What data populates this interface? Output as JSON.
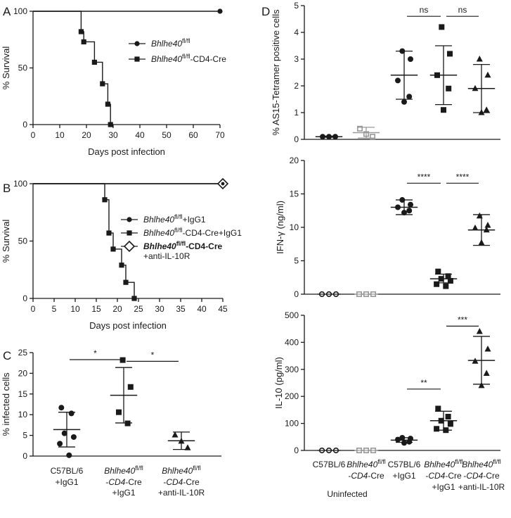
{
  "panels": {
    "A": "A",
    "B": "B",
    "C": "C",
    "D": "D"
  },
  "chart_data": [
    {
      "panel": "A",
      "type": "line",
      "xlabel": "Days post infection",
      "ylabel": "% Survival",
      "xlim": [
        0,
        70
      ],
      "ylim": [
        0,
        100
      ],
      "xticks": [
        0,
        10,
        20,
        30,
        40,
        50,
        60,
        70
      ],
      "yticks": [
        0,
        50,
        100
      ],
      "series": [
        {
          "name": "Bhlhe40",
          "sup": "fl/fl",
          "suffix": "",
          "marker": "circle",
          "x": [
            0,
            70
          ],
          "y": [
            100,
            100
          ],
          "marked": [
            [
              70,
              100
            ]
          ]
        },
        {
          "name": "Bhlhe40",
          "sup": "fl/fl",
          "suffix": "-CD4-Cre",
          "marker": "square",
          "x": [
            0,
            18,
            19,
            23,
            26,
            28,
            29
          ],
          "y": [
            100,
            82,
            73,
            55,
            36,
            18,
            0
          ],
          "marked": [
            [
              18,
              82
            ],
            [
              19,
              73
            ],
            [
              23,
              55
            ],
            [
              26,
              36
            ],
            [
              28,
              18
            ],
            [
              29,
              0
            ]
          ]
        }
      ]
    },
    {
      "panel": "B",
      "type": "line",
      "xlabel": "Days post infection",
      "ylabel": "% Survival",
      "xlim": [
        0,
        45
      ],
      "ylim": [
        0,
        100
      ],
      "xticks": [
        0,
        5,
        10,
        15,
        20,
        25,
        30,
        35,
        40,
        45
      ],
      "yticks": [
        0,
        50,
        100
      ],
      "series": [
        {
          "name": "Bhlhe40",
          "sup": "fl/fl",
          "suffix": "+IgG1",
          "marker": "circle",
          "x": [
            0,
            45
          ],
          "y": [
            100,
            100
          ],
          "marked": [
            [
              45,
              100
            ]
          ]
        },
        {
          "name": "Bhlhe40",
          "sup": "fl/fl",
          "suffix": "-CD4-Cre+IgG1",
          "marker": "square",
          "x": [
            0,
            17,
            18,
            19,
            21,
            22,
            24
          ],
          "y": [
            100,
            86,
            57,
            43,
            29,
            14,
            0
          ],
          "marked": [
            [
              17,
              86
            ],
            [
              18,
              57
            ],
            [
              19,
              43
            ],
            [
              21,
              29
            ],
            [
              22,
              14
            ],
            [
              24,
              0
            ]
          ]
        },
        {
          "name": "Bhlhe40",
          "sup": "fl/fl",
          "suffix": "-CD4-Cre",
          "line2": "+anti-IL-10R",
          "marker": "diamond",
          "x": [
            0,
            45
          ],
          "y": [
            100,
            100
          ],
          "marked": [
            [
              45,
              100
            ]
          ]
        }
      ]
    },
    {
      "panel": "C",
      "type": "scatter",
      "ylabel": "% infected cells",
      "ylim": [
        0,
        25
      ],
      "yticks": [
        0,
        5,
        10,
        15,
        20,
        25
      ],
      "groups": [
        {
          "line1": "C57BL/6",
          "line2": "+IgG1",
          "marker": "circle",
          "points": [
            11.7,
            10.3,
            5.5,
            4.6,
            3.0,
            0.2
          ],
          "mean": 6.4,
          "sd": [
            2.2,
            10.6
          ]
        },
        {
          "line1": "Bhlhe40",
          "sup": "fl/fl",
          "line2": "-CD4-Cre",
          "line3": "+IgG1",
          "marker": "square",
          "points": [
            23.2,
            16.7,
            10.6,
            7.9
          ],
          "mean": 14.7,
          "sd": [
            8.0,
            21.4
          ]
        },
        {
          "line1": "Bhlhe40",
          "sup": "fl/fl",
          "line2": "-CD4-Cre",
          "line3": "+anti-IL-10R",
          "marker": "triangle",
          "points": [
            5.1,
            3.6,
            2.0
          ],
          "mean": 3.7,
          "sd": [
            1.6,
            5.8
          ]
        }
      ],
      "significance": [
        {
          "from": 0,
          "to": 1,
          "label": "*",
          "y": 23.3
        },
        {
          "from": 1,
          "to": 2,
          "label": "*",
          "y": 22.9
        }
      ]
    },
    {
      "panel": "D",
      "type": "scatter",
      "subplots": [
        {
          "ylabel": "% AS15-Tetramer positive cells",
          "ylim": [
            0,
            5
          ],
          "yticks": [
            0,
            1,
            2,
            3,
            4,
            5
          ],
          "groups": [
            {
              "marker": "circle",
              "color": "#1a1a1a",
              "points": [
                0.1,
                0.1,
                0.1
              ],
              "mean": 0.1,
              "sd": [
                0.08,
                0.12
              ]
            },
            {
              "marker": "open-square",
              "color": "#999999",
              "points": [
                0.4,
                0.2,
                0.1
              ],
              "mean": 0.25,
              "sd": [
                0.05,
                0.45
              ]
            },
            {
              "marker": "circle",
              "color": "#1a1a1a",
              "points": [
                3.3,
                3.0,
                2.2,
                1.6,
                1.4
              ],
              "mean": 2.4,
              "sd": [
                1.5,
                3.3
              ]
            },
            {
              "marker": "square",
              "color": "#1a1a1a",
              "points": [
                4.2,
                3.2,
                2.4,
                1.9,
                1.1
              ],
              "mean": 2.4,
              "sd": [
                1.3,
                3.5
              ]
            },
            {
              "marker": "triangle",
              "color": "#1a1a1a",
              "points": [
                3.0,
                2.4,
                1.9,
                1.1,
                1.0
              ],
              "mean": 1.9,
              "sd": [
                1.0,
                2.8
              ]
            }
          ],
          "significance": [
            {
              "from": 2,
              "to": 3,
              "label": "ns",
              "y": 4.6
            },
            {
              "from": 3,
              "to": 4,
              "label": "ns",
              "y": 4.6
            }
          ]
        },
        {
          "ylabel": "IFN-γ (ng/ml)",
          "ylim": [
            0,
            20
          ],
          "yticks": [
            0,
            5,
            10,
            15,
            20
          ],
          "groups": [
            {
              "marker": "open-circle",
              "color": "#1a1a1a",
              "points": [
                0,
                0,
                0
              ],
              "mean": 0,
              "sd": [
                0,
                0
              ]
            },
            {
              "marker": "open-square",
              "color": "#999999",
              "points": [
                0,
                0,
                0
              ],
              "mean": 0,
              "sd": [
                0,
                0
              ]
            },
            {
              "marker": "circle",
              "color": "#1a1a1a",
              "points": [
                14.1,
                13.4,
                13.0,
                12.5,
                12.2
              ],
              "mean": 13.0,
              "sd": [
                11.9,
                14.1
              ]
            },
            {
              "marker": "square",
              "color": "#1a1a1a",
              "points": [
                3.4,
                2.7,
                2.3,
                2.0,
                1.5,
                1.2
              ],
              "mean": 2.3,
              "sd": [
                1.7,
                3.0
              ]
            },
            {
              "marker": "triangle",
              "color": "#1a1a1a",
              "points": [
                11.7,
                10.3,
                9.9,
                9.6,
                7.7
              ],
              "mean": 9.6,
              "sd": [
                7.3,
                11.9
              ]
            }
          ],
          "significance": [
            {
              "from": 2,
              "to": 3,
              "label": "****",
              "y": 16.6
            },
            {
              "from": 3,
              "to": 4,
              "label": "****",
              "y": 16.6
            }
          ]
        },
        {
          "ylabel": "IL-10 (pg/ml)",
          "ylim": [
            0,
            500
          ],
          "yticks": [
            0,
            100,
            200,
            300,
            400,
            500
          ],
          "groups": [
            {
              "marker": "open-circle",
              "color": "#1a1a1a",
              "points": [
                0,
                0,
                0
              ],
              "mean": 0,
              "sd": [
                0,
                0
              ]
            },
            {
              "marker": "open-square",
              "color": "#999999",
              "points": [
                0,
                0,
                0
              ],
              "mean": 0,
              "sd": [
                0,
                0
              ]
            },
            {
              "marker": "circle",
              "color": "#1a1a1a",
              "points": [
                47,
                44,
                40,
                32,
                28
              ],
              "mean": 38,
              "sd": [
                30,
                47
              ]
            },
            {
              "marker": "square",
              "color": "#1a1a1a",
              "points": [
                155,
                125,
                110,
                98,
                80,
                75
              ],
              "mean": 110,
              "sd": [
                75,
                145
              ]
            },
            {
              "marker": "triangle",
              "color": "#1a1a1a",
              "points": [
                440,
                375,
                330,
                285,
                240
              ],
              "mean": 333,
              "sd": [
                245,
                422
              ]
            }
          ],
          "significance": [
            {
              "from": 2,
              "to": 3,
              "label": "**",
              "y": 227
            },
            {
              "from": 3,
              "to": 4,
              "label": "***",
              "y": 460
            }
          ]
        }
      ],
      "categories": [
        {
          "line1": "C57BL/6"
        },
        {
          "line1": "Bhlhe40",
          "sup": "fl/fl",
          "line2": "-CD4-Cre"
        },
        {
          "line1": "C57BL/6",
          "line2": "+IgG1"
        },
        {
          "line1": "Bhlhe40",
          "sup": "fl/fl",
          "line2": "-CD4-Cre",
          "line3": "+IgG1"
        },
        {
          "line1": "Bhlhe40",
          "sup": "fl/fl",
          "line2": "-CD4-Cre",
          "line3": "+anti-IL-10R"
        }
      ],
      "group_label": "Uninfected"
    }
  ]
}
